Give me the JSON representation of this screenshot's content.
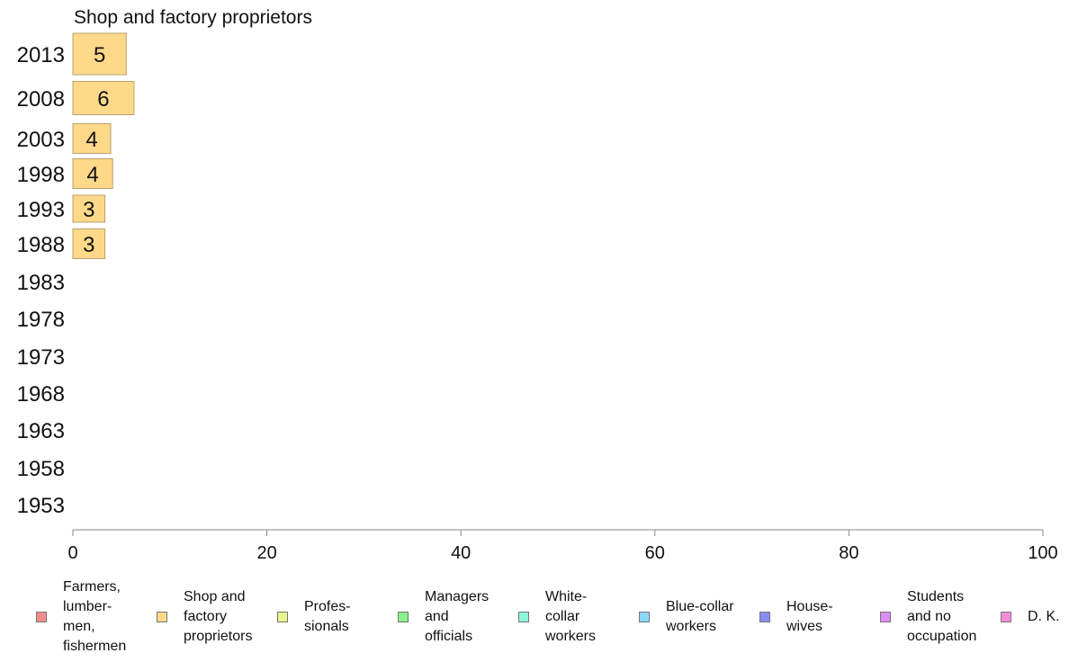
{
  "chart_data": {
    "type": "bar",
    "orientation": "horizontal",
    "title": "Shop and factory proprietors",
    "categories": [
      "2013",
      "2008",
      "2003",
      "1998",
      "1993",
      "1988",
      "1983",
      "1978",
      "1973",
      "1968",
      "1963",
      "1958",
      "1953"
    ],
    "values": [
      5.5,
      6.3,
      3.9,
      4.1,
      3.3,
      3.3,
      null,
      null,
      null,
      null,
      null,
      null,
      null
    ],
    "data_labels": [
      "5",
      "6",
      "4",
      "4",
      "3",
      "3",
      "",
      "",
      "",
      "",
      "",
      "",
      ""
    ],
    "xlim": [
      0,
      100
    ],
    "x_ticks": [
      "0",
      "20",
      "40",
      "60",
      "80",
      "100"
    ],
    "x_tick_values": [
      0,
      20,
      40,
      60,
      80,
      100
    ],
    "grid": false,
    "legend_position": "bottom",
    "bar_color": "#FFD98A",
    "legend": [
      {
        "label": "Farmers,\nlumber-\nmen,\nfishermen",
        "color": "#F28C8C"
      },
      {
        "label": "Shop and\nfactory\nproprietors",
        "color": "#FFD98A"
      },
      {
        "label": "Profes-\nsionals",
        "color": "#E6F58C"
      },
      {
        "label": "Managers\nand\nofficials",
        "color": "#8CF08C"
      },
      {
        "label": "White-\ncollar\nworkers",
        "color": "#8CF5DC"
      },
      {
        "label": "Blue-collar\nworkers",
        "color": "#8CD8F5"
      },
      {
        "label": "House-\nwives",
        "color": "#8C8CF0"
      },
      {
        "label": "Students\nand no\noccupation",
        "color": "#DC8CF5"
      },
      {
        "label": "D. K.",
        "color": "#F58CD8"
      }
    ]
  }
}
